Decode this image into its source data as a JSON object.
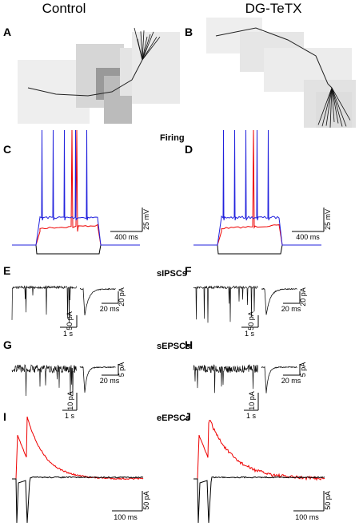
{
  "column_titles": [
    "Control",
    "DG-TeTX"
  ],
  "row_titles": [
    "Firing",
    "sIPSCs",
    "sEPSCs",
    "eEPSCs"
  ],
  "panels": [
    {
      "letter": "A"
    },
    {
      "letter": "B"
    },
    {
      "letter": "C",
      "scale_bars": [
        "25 mV",
        "400 ms"
      ]
    },
    {
      "letter": "D",
      "scale_bars": [
        "25 mV",
        "400 ms"
      ]
    },
    {
      "letter": "E",
      "scale_bars": [
        "50 pA",
        "1 s",
        "20 pA",
        "20 ms"
      ]
    },
    {
      "letter": "F",
      "scale_bars": [
        "50 pA",
        "1 s",
        "20 pA",
        "20 ms"
      ]
    },
    {
      "letter": "G",
      "scale_bars": [
        "10 pA",
        "1 s",
        "5 pA",
        "20 ms"
      ]
    },
    {
      "letter": "H",
      "scale_bars": [
        "10 pA",
        "1 s",
        "5 pA",
        "20 ms"
      ]
    },
    {
      "letter": "I",
      "scale_bars": [
        "50 pA",
        "100 ms"
      ]
    },
    {
      "letter": "J",
      "scale_bars": [
        "50 pA",
        "100 ms"
      ]
    }
  ]
}
